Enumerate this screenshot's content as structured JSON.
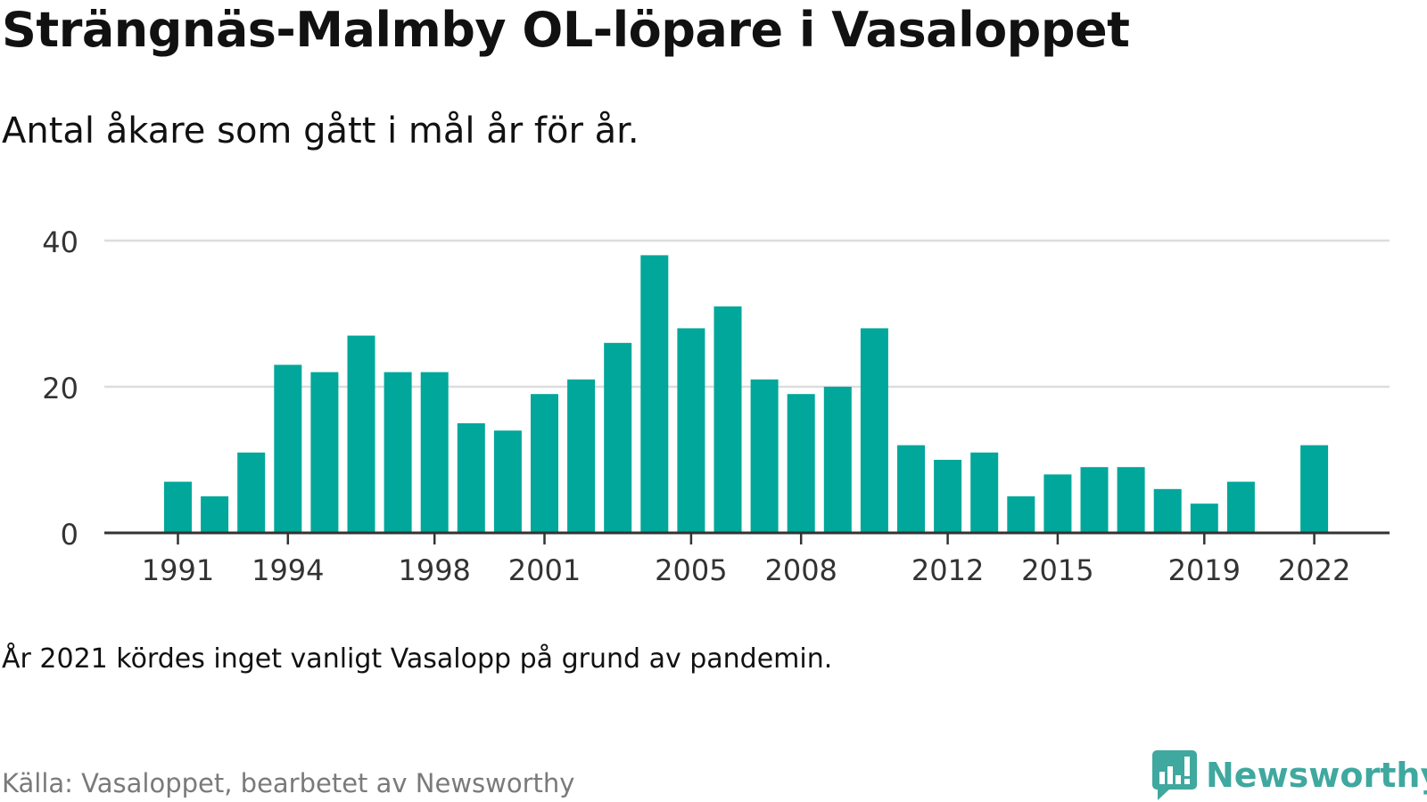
{
  "header": {
    "title": "Strängnäs-Malmby OL-löpare i Vasaloppet",
    "subtitle": "Antal åkare som gått i mål år för år."
  },
  "footer": {
    "note": "År 2021 kördes inget vanligt Vasalopp på grund av pandemin.",
    "source": "Källa: Vasaloppet, bearbetet av Newsworthy",
    "brand": "Newsworthy"
  },
  "colors": {
    "bar": "#00a79a",
    "grid": "#dddddd",
    "axis": "#333333",
    "tick_text": "#333333",
    "brand": "#3fa89f",
    "source_text": "#7a7a7a"
  },
  "chart_data": {
    "type": "bar",
    "title": "Strängnäs-Malmby OL-löpare i Vasaloppet",
    "subtitle": "Antal åkare som gått i mål år för år.",
    "xlabel": "",
    "ylabel": "",
    "ylim": [
      0,
      40
    ],
    "yticks": [
      0,
      20,
      40
    ],
    "grid": true,
    "legend": "none",
    "categories": [
      1991,
      1992,
      1993,
      1994,
      1995,
      1996,
      1997,
      1998,
      1999,
      2000,
      2001,
      2002,
      2003,
      2004,
      2005,
      2006,
      2007,
      2008,
      2009,
      2010,
      2011,
      2012,
      2013,
      2014,
      2015,
      2016,
      2017,
      2018,
      2019,
      2020,
      2021,
      2022
    ],
    "xticks": [
      1991,
      1994,
      1998,
      2001,
      2005,
      2008,
      2012,
      2015,
      2019,
      2022
    ],
    "values": [
      7,
      5,
      11,
      23,
      22,
      27,
      22,
      22,
      15,
      14,
      19,
      21,
      26,
      38,
      28,
      31,
      21,
      19,
      20,
      28,
      12,
      10,
      11,
      5,
      8,
      9,
      9,
      6,
      4,
      7,
      null,
      12
    ]
  }
}
